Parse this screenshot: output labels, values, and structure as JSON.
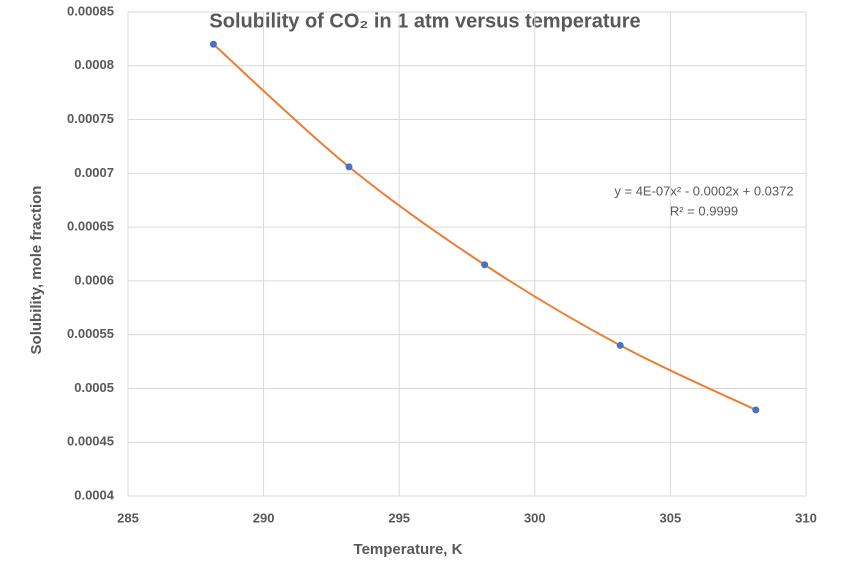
{
  "chart_data": {
    "type": "scatter",
    "title": "Solubility of CO₂ in 1 atm versus temperature",
    "x_label": "Temperature, K",
    "y_label": "Solubility, mole fraction",
    "x": [
      288.15,
      293.15,
      298.15,
      303.15,
      308.15
    ],
    "values": [
      0.00082,
      0.000706,
      0.000615,
      0.00054,
      0.00048
    ],
    "color": "#4472c4",
    "trendline_color": "#ed7d31",
    "annotations": [
      "y = 4E-07x² - 0.0002x + 0.0372",
      "R² = 0.9999"
    ],
    "xlim": [
      285,
      310
    ],
    "xticks": [
      285,
      290,
      295,
      300,
      305,
      310
    ],
    "ylim": [
      0.0004,
      0.00085
    ],
    "yticks": [
      0.0004,
      0.00045,
      0.0005,
      0.00055,
      0.0006,
      0.00065,
      0.0007,
      0.00075,
      0.0008,
      0.00085
    ],
    "grid": true
  }
}
